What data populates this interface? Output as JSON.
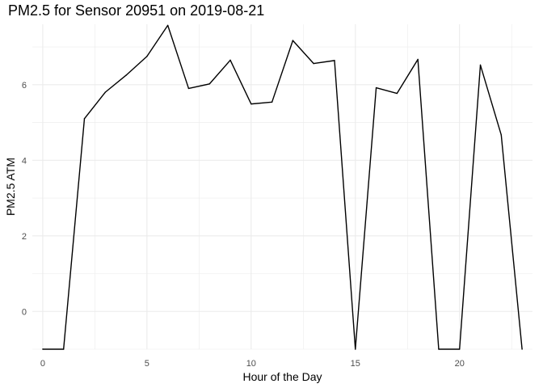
{
  "chart_data": {
    "type": "line",
    "title": "PM2.5 for Sensor 20951 on 2019-08-21",
    "xlabel": "Hour of the Day",
    "ylabel": "PM2.5 ATM",
    "x": [
      0,
      1,
      2,
      3,
      4,
      5,
      6,
      7,
      8,
      9,
      10,
      11,
      12,
      13,
      14,
      15,
      16,
      17,
      18,
      19,
      20,
      21,
      22,
      23
    ],
    "series": [
      {
        "values": [
          -1.0,
          -1.0,
          5.1,
          5.8,
          6.25,
          6.75,
          7.57,
          5.9,
          6.02,
          6.65,
          5.49,
          5.54,
          7.17,
          6.56,
          6.64,
          -1.0,
          5.92,
          5.77,
          6.67,
          -1.0,
          -1.0,
          6.52,
          4.67,
          -1.0
        ]
      }
    ],
    "xlim": [
      -0.5,
      23.5
    ],
    "ylim": [
      -1,
      7.6
    ],
    "x_ticks": [
      "0",
      "5",
      "10",
      "15",
      "20"
    ],
    "y_ticks": [
      "0",
      "2",
      "4",
      "6"
    ],
    "grid": true,
    "line_color": "#000000",
    "grid_color": "#ebebeb"
  }
}
